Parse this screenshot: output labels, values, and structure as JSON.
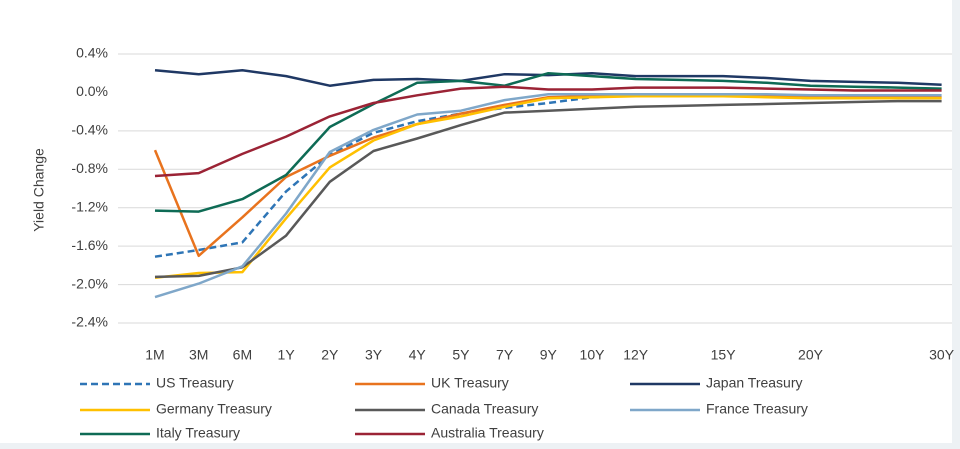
{
  "chart_data": {
    "type": "line",
    "y_label": "Yield Change",
    "categories": [
      "1M",
      "3M",
      "6M",
      "1Y",
      "2Y",
      "3Y",
      "4Y",
      "5Y",
      "7Y",
      "9Y",
      "10Y",
      "12Y",
      null,
      "15Y",
      null,
      "20Y",
      null,
      null,
      "30Y"
    ],
    "ylim": [
      -2.4,
      0.4
    ],
    "yticks": [
      {
        "value": 0.4,
        "label": "0.4%"
      },
      {
        "value": 0,
        "label": "0.0%"
      },
      {
        "value": -0.4,
        "label": "-0.4%"
      },
      {
        "value": -0.8,
        "label": "-0.8%"
      },
      {
        "value": -1.2,
        "label": "-1.2%"
      },
      {
        "value": -1.6,
        "label": "-1.6%"
      },
      {
        "value": -2.0,
        "label": "-2.0%"
      },
      {
        "value": -2.4,
        "label": "-2.4%"
      }
    ],
    "grid": true,
    "legend": "bottom",
    "series": [
      {
        "name": "US Treasury",
        "color": "#2e75b6",
        "dashed": true,
        "values": [
          -1.71,
          -1.64,
          -1.56,
          -1.03,
          -0.65,
          -0.42,
          -0.3,
          -0.22,
          -0.16,
          -0.11,
          -0.05,
          -0.03,
          -0.03,
          -0.03,
          -0.04,
          -0.06,
          -0.06,
          -0.06,
          -0.06
        ]
      },
      {
        "name": "UK Treasury",
        "color": "#e8731e",
        "values": [
          -0.6,
          -1.7,
          -1.3,
          -0.88,
          -0.66,
          -0.47,
          -0.33,
          -0.22,
          -0.13,
          -0.05,
          -0.04,
          -0.02,
          -0.02,
          -0.02,
          -0.03,
          -0.04,
          -0.04,
          -0.05,
          -0.05
        ]
      },
      {
        "name": "Japan Treasury",
        "color": "#1f3864",
        "values": [
          0.23,
          0.19,
          0.23,
          0.17,
          0.07,
          0.13,
          0.14,
          0.12,
          0.19,
          0.18,
          0.2,
          0.17,
          0.17,
          0.17,
          0.15,
          0.12,
          0.11,
          0.1,
          0.08
        ]
      },
      {
        "name": "Germany Treasury",
        "color": "#ffc000",
        "values": [
          -1.93,
          -1.88,
          -1.87,
          -1.31,
          -0.78,
          -0.5,
          -0.33,
          -0.25,
          -0.15,
          -0.06,
          -0.05,
          -0.04,
          -0.04,
          -0.04,
          -0.05,
          -0.06,
          -0.06,
          -0.06,
          -0.06
        ]
      },
      {
        "name": "Canada Treasury",
        "color": "#595959",
        "values": [
          -1.92,
          -1.91,
          -1.82,
          -1.49,
          -0.93,
          -0.61,
          -0.48,
          -0.34,
          -0.21,
          -0.19,
          -0.17,
          -0.15,
          -0.14,
          -0.13,
          -0.12,
          -0.11,
          -0.1,
          -0.09,
          -0.09
        ]
      },
      {
        "name": "France Treasury",
        "color": "#7fa7c9",
        "values": [
          -2.13,
          -1.99,
          -1.81,
          -1.26,
          -0.62,
          -0.39,
          -0.23,
          -0.19,
          -0.08,
          -0.02,
          -0.02,
          -0.02,
          -0.02,
          -0.02,
          -0.02,
          -0.03,
          -0.03,
          -0.03,
          -0.03
        ]
      },
      {
        "name": "Italy Treasury",
        "color": "#0e6b55",
        "values": [
          -1.23,
          -1.24,
          -1.11,
          -0.86,
          -0.36,
          -0.12,
          0.1,
          0.12,
          0.07,
          0.2,
          0.17,
          0.14,
          0.13,
          0.12,
          0.1,
          0.07,
          0.06,
          0.05,
          0.04
        ]
      },
      {
        "name": "Australia Treasury",
        "color": "#9b2335",
        "values": [
          -0.87,
          -0.84,
          -0.64,
          -0.46,
          -0.25,
          -0.11,
          -0.03,
          0.04,
          0.06,
          0.03,
          0.03,
          0.05,
          0.05,
          0.05,
          0.04,
          0.03,
          0.02,
          0.02,
          0.02
        ]
      }
    ]
  }
}
